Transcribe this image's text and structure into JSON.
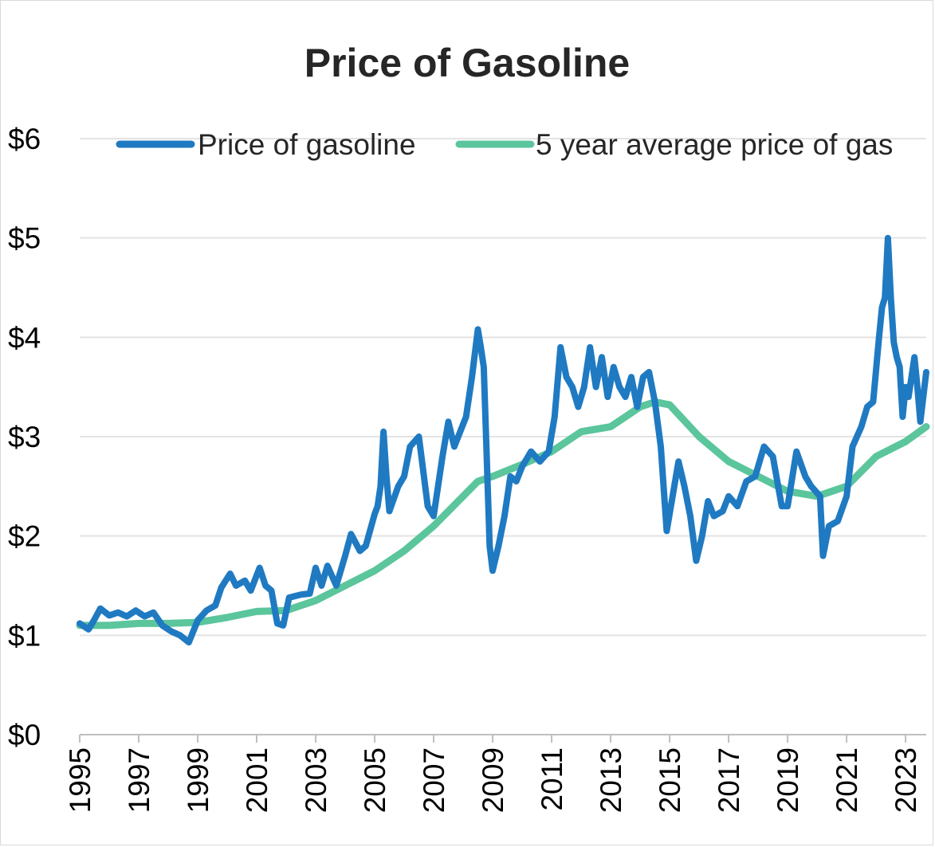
{
  "chart_data": {
    "type": "line",
    "title": "Price of Gasoline",
    "xlabel": "",
    "ylabel": "",
    "xlim": [
      1995.0,
      2023.7
    ],
    "ylim": [
      0,
      6
    ],
    "grid": true,
    "legend_position": "top",
    "y_ticks": [
      0,
      1,
      2,
      3,
      4,
      5,
      6
    ],
    "y_tick_labels": [
      "$0",
      "$1",
      "$2",
      "$3",
      "$4",
      "$5",
      "$6"
    ],
    "x_ticks": [
      1995,
      1997,
      1999,
      2001,
      2003,
      2005,
      2007,
      2009,
      2011,
      2013,
      2015,
      2017,
      2019,
      2021,
      2023
    ],
    "x_tick_labels": [
      "1995",
      "1997",
      "1999",
      "2001",
      "2003",
      "2005",
      "2007",
      "2009",
      "2011",
      "2013",
      "2015",
      "2017",
      "2019",
      "2021",
      "2023"
    ],
    "series": [
      {
        "name": "Price of gasoline",
        "color": "#1f7ac2",
        "points": [
          [
            1995.0,
            1.12
          ],
          [
            1995.3,
            1.06
          ],
          [
            1995.5,
            1.16
          ],
          [
            1995.7,
            1.27
          ],
          [
            1996.0,
            1.2
          ],
          [
            1996.3,
            1.23
          ],
          [
            1996.6,
            1.19
          ],
          [
            1996.9,
            1.25
          ],
          [
            1997.2,
            1.19
          ],
          [
            1997.5,
            1.23
          ],
          [
            1997.8,
            1.1
          ],
          [
            1998.1,
            1.04
          ],
          [
            1998.4,
            1.0
          ],
          [
            1998.7,
            0.93
          ],
          [
            1999.0,
            1.15
          ],
          [
            1999.3,
            1.25
          ],
          [
            1999.6,
            1.3
          ],
          [
            1999.8,
            1.48
          ],
          [
            2000.1,
            1.62
          ],
          [
            2000.3,
            1.5
          ],
          [
            2000.6,
            1.55
          ],
          [
            2000.8,
            1.45
          ],
          [
            2001.1,
            1.68
          ],
          [
            2001.3,
            1.5
          ],
          [
            2001.5,
            1.45
          ],
          [
            2001.7,
            1.12
          ],
          [
            2001.9,
            1.1
          ],
          [
            2002.1,
            1.38
          ],
          [
            2002.5,
            1.41
          ],
          [
            2002.8,
            1.42
          ],
          [
            2003.0,
            1.68
          ],
          [
            2003.2,
            1.5
          ],
          [
            2003.4,
            1.7
          ],
          [
            2003.7,
            1.5
          ],
          [
            2004.0,
            1.8
          ],
          [
            2004.2,
            2.02
          ],
          [
            2004.5,
            1.85
          ],
          [
            2004.7,
            1.9
          ],
          [
            2005.0,
            2.22
          ],
          [
            2005.1,
            2.3
          ],
          [
            2005.2,
            2.5
          ],
          [
            2005.3,
            3.05
          ],
          [
            2005.4,
            2.6
          ],
          [
            2005.5,
            2.25
          ],
          [
            2005.8,
            2.5
          ],
          [
            2006.0,
            2.6
          ],
          [
            2006.2,
            2.9
          ],
          [
            2006.5,
            3.0
          ],
          [
            2006.8,
            2.3
          ],
          [
            2007.0,
            2.2
          ],
          [
            2007.3,
            2.8
          ],
          [
            2007.5,
            3.15
          ],
          [
            2007.7,
            2.9
          ],
          [
            2007.9,
            3.05
          ],
          [
            2008.1,
            3.2
          ],
          [
            2008.3,
            3.6
          ],
          [
            2008.5,
            4.08
          ],
          [
            2008.6,
            3.9
          ],
          [
            2008.7,
            3.7
          ],
          [
            2008.8,
            2.8
          ],
          [
            2008.9,
            1.9
          ],
          [
            2009.0,
            1.65
          ],
          [
            2009.2,
            1.9
          ],
          [
            2009.4,
            2.2
          ],
          [
            2009.6,
            2.6
          ],
          [
            2009.8,
            2.55
          ],
          [
            2010.0,
            2.7
          ],
          [
            2010.3,
            2.85
          ],
          [
            2010.6,
            2.75
          ],
          [
            2010.9,
            2.85
          ],
          [
            2011.1,
            3.2
          ],
          [
            2011.3,
            3.9
          ],
          [
            2011.5,
            3.6
          ],
          [
            2011.7,
            3.5
          ],
          [
            2011.9,
            3.3
          ],
          [
            2012.1,
            3.5
          ],
          [
            2012.3,
            3.9
          ],
          [
            2012.5,
            3.5
          ],
          [
            2012.7,
            3.8
          ],
          [
            2012.9,
            3.4
          ],
          [
            2013.1,
            3.7
          ],
          [
            2013.3,
            3.5
          ],
          [
            2013.5,
            3.4
          ],
          [
            2013.7,
            3.6
          ],
          [
            2013.9,
            3.3
          ],
          [
            2014.1,
            3.6
          ],
          [
            2014.3,
            3.65
          ],
          [
            2014.5,
            3.35
          ],
          [
            2014.7,
            2.9
          ],
          [
            2014.9,
            2.05
          ],
          [
            2015.1,
            2.4
          ],
          [
            2015.3,
            2.75
          ],
          [
            2015.5,
            2.5
          ],
          [
            2015.7,
            2.2
          ],
          [
            2015.9,
            1.75
          ],
          [
            2016.1,
            2.0
          ],
          [
            2016.3,
            2.35
          ],
          [
            2016.5,
            2.2
          ],
          [
            2016.8,
            2.25
          ],
          [
            2017.0,
            2.4
          ],
          [
            2017.3,
            2.3
          ],
          [
            2017.6,
            2.55
          ],
          [
            2017.9,
            2.6
          ],
          [
            2018.2,
            2.9
          ],
          [
            2018.5,
            2.8
          ],
          [
            2018.8,
            2.3
          ],
          [
            2019.0,
            2.3
          ],
          [
            2019.3,
            2.85
          ],
          [
            2019.6,
            2.6
          ],
          [
            2019.8,
            2.5
          ],
          [
            2020.1,
            2.4
          ],
          [
            2020.2,
            1.8
          ],
          [
            2020.4,
            2.1
          ],
          [
            2020.7,
            2.15
          ],
          [
            2021.0,
            2.4
          ],
          [
            2021.2,
            2.9
          ],
          [
            2021.5,
            3.1
          ],
          [
            2021.7,
            3.3
          ],
          [
            2021.9,
            3.35
          ],
          [
            2022.1,
            4.0
          ],
          [
            2022.2,
            4.3
          ],
          [
            2022.3,
            4.4
          ],
          [
            2022.4,
            5.0
          ],
          [
            2022.5,
            4.4
          ],
          [
            2022.6,
            3.95
          ],
          [
            2022.7,
            3.8
          ],
          [
            2022.8,
            3.7
          ],
          [
            2022.9,
            3.2
          ],
          [
            2023.0,
            3.5
          ],
          [
            2023.1,
            3.4
          ],
          [
            2023.2,
            3.6
          ],
          [
            2023.3,
            3.8
          ],
          [
            2023.4,
            3.5
          ],
          [
            2023.5,
            3.15
          ],
          [
            2023.6,
            3.4
          ],
          [
            2023.7,
            3.65
          ]
        ]
      },
      {
        "name": "5 year average price of gas",
        "color": "#5bc59c",
        "points": [
          [
            1995.0,
            1.1
          ],
          [
            1996.0,
            1.1
          ],
          [
            1997.0,
            1.12
          ],
          [
            1998.0,
            1.12
          ],
          [
            1999.0,
            1.13
          ],
          [
            2000.0,
            1.18
          ],
          [
            2001.0,
            1.24
          ],
          [
            2002.0,
            1.25
          ],
          [
            2003.0,
            1.35
          ],
          [
            2004.0,
            1.5
          ],
          [
            2005.0,
            1.65
          ],
          [
            2006.0,
            1.85
          ],
          [
            2007.0,
            2.1
          ],
          [
            2008.0,
            2.4
          ],
          [
            2008.5,
            2.55
          ],
          [
            2009.0,
            2.6
          ],
          [
            2010.0,
            2.72
          ],
          [
            2011.0,
            2.85
          ],
          [
            2012.0,
            3.05
          ],
          [
            2013.0,
            3.1
          ],
          [
            2013.5,
            3.2
          ],
          [
            2014.0,
            3.3
          ],
          [
            2014.5,
            3.35
          ],
          [
            2015.0,
            3.32
          ],
          [
            2016.0,
            3.0
          ],
          [
            2017.0,
            2.75
          ],
          [
            2018.0,
            2.6
          ],
          [
            2019.0,
            2.45
          ],
          [
            2020.0,
            2.4
          ],
          [
            2021.0,
            2.5
          ],
          [
            2022.0,
            2.8
          ],
          [
            2023.0,
            2.95
          ],
          [
            2023.7,
            3.1
          ]
        ]
      }
    ]
  }
}
